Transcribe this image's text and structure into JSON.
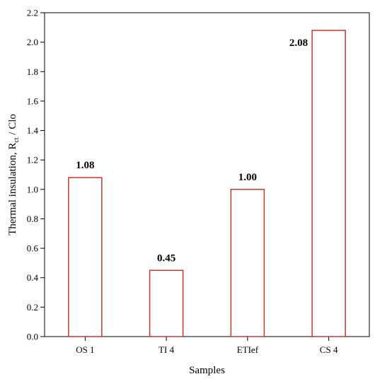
{
  "chart_data": {
    "type": "bar",
    "categories": [
      "OS 1",
      "TI 4",
      "ETIef",
      "CS 4"
    ],
    "values": [
      1.08,
      0.45,
      1.0,
      2.08
    ],
    "data_labels": [
      "1.08",
      "0.45",
      "1.00",
      "2.08"
    ],
    "xlabel": "Samples",
    "ylabel": {
      "main": "Thermal insulation, R",
      "subscript": "ct",
      "suffix": " / Clo"
    },
    "ylim": [
      0,
      2.2
    ],
    "yticks": [
      "0.0",
      "0.2",
      "0.4",
      "0.6",
      "0.8",
      "1.0",
      "1.2",
      "1.4",
      "1.6",
      "1.8",
      "2.0",
      "2.2"
    ],
    "grid": false,
    "bar_color": "#c0392b",
    "bar_fill": "#ffffff"
  }
}
